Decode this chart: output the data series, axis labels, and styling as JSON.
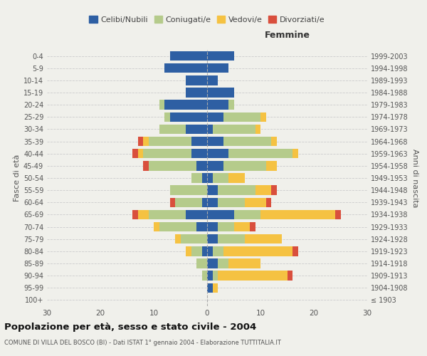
{
  "age_groups": [
    "100+",
    "95-99",
    "90-94",
    "85-89",
    "80-84",
    "75-79",
    "70-74",
    "65-69",
    "60-64",
    "55-59",
    "50-54",
    "45-49",
    "40-44",
    "35-39",
    "30-34",
    "25-29",
    "20-24",
    "15-19",
    "10-14",
    "5-9",
    "0-4"
  ],
  "birth_years": [
    "≤ 1903",
    "1904-1908",
    "1909-1913",
    "1914-1918",
    "1919-1923",
    "1924-1928",
    "1929-1933",
    "1934-1938",
    "1939-1943",
    "1944-1948",
    "1949-1953",
    "1954-1958",
    "1959-1963",
    "1964-1968",
    "1969-1973",
    "1974-1978",
    "1979-1983",
    "1984-1988",
    "1989-1993",
    "1994-1998",
    "1999-2003"
  ],
  "males": {
    "celibi": [
      0,
      0,
      0,
      0,
      1,
      0,
      2,
      4,
      1,
      0,
      1,
      2,
      3,
      3,
      4,
      7,
      8,
      4,
      4,
      8,
      7
    ],
    "coniugati": [
      0,
      0,
      1,
      2,
      2,
      5,
      7,
      7,
      5,
      7,
      2,
      9,
      9,
      8,
      5,
      1,
      1,
      0,
      0,
      0,
      0
    ],
    "vedovi": [
      0,
      0,
      0,
      0,
      1,
      1,
      1,
      2,
      0,
      0,
      0,
      0,
      1,
      1,
      0,
      0,
      0,
      0,
      0,
      0,
      0
    ],
    "divorziati": [
      0,
      0,
      0,
      0,
      0,
      0,
      0,
      1,
      1,
      0,
      0,
      1,
      1,
      1,
      0,
      0,
      0,
      0,
      0,
      0,
      0
    ]
  },
  "females": {
    "nubili": [
      0,
      1,
      1,
      2,
      1,
      2,
      2,
      5,
      2,
      2,
      1,
      3,
      4,
      3,
      1,
      3,
      4,
      5,
      2,
      4,
      5
    ],
    "coniugate": [
      0,
      0,
      1,
      2,
      2,
      5,
      3,
      5,
      5,
      7,
      3,
      8,
      12,
      9,
      8,
      7,
      1,
      0,
      0,
      0,
      0
    ],
    "vedove": [
      0,
      1,
      13,
      6,
      13,
      7,
      3,
      14,
      4,
      3,
      3,
      2,
      1,
      1,
      1,
      1,
      0,
      0,
      0,
      0,
      0
    ],
    "divorziate": [
      0,
      0,
      1,
      0,
      1,
      0,
      1,
      1,
      1,
      1,
      0,
      0,
      0,
      0,
      0,
      0,
      0,
      0,
      0,
      0,
      0
    ]
  },
  "colors": {
    "celibi": "#2e5fa3",
    "coniugati": "#b5cb8b",
    "vedovi": "#f5c242",
    "divorziati": "#d94f3d"
  },
  "legend_labels": [
    "Celibi/Nubili",
    "Coniugati/e",
    "Vedovi/e",
    "Divorziati/e"
  ],
  "title": "Popolazione per età, sesso e stato civile - 2004",
  "subtitle": "COMUNE DI VILLA DEL BOSCO (BI) - Dati ISTAT 1° gennaio 2004 - Elaborazione TUTTITALIA.IT",
  "xlabel_right": "Femmine",
  "ylabel_left": "Fasce di età",
  "ylabel_right": "Anni di nascita",
  "xlim": 30,
  "background_color": "#f0f0eb"
}
